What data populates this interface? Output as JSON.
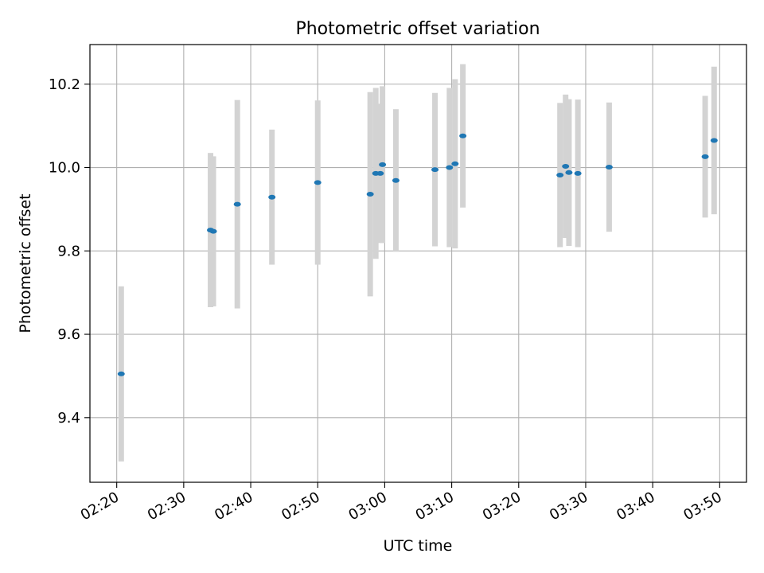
{
  "chart_data": {
    "type": "scatter",
    "title": "Photometric offset variation",
    "xlabel": "UTC time",
    "ylabel": "Photometric offset",
    "xlim": [
      "02:16",
      "03:54"
    ],
    "ylim": [
      9.245,
      10.295
    ],
    "grid": true,
    "x_ticks": [
      "02:20",
      "02:30",
      "02:40",
      "02:50",
      "03:00",
      "03:10",
      "03:20",
      "03:30",
      "03:40",
      "03:50"
    ],
    "y_ticks": [
      9.4,
      9.6,
      9.8,
      10.0,
      10.2
    ],
    "y_tick_labels": [
      "9.4",
      "9.6",
      "9.8",
      "10.0",
      "10.2"
    ],
    "point_color": "#1f77b4",
    "errorbar_color": "#d3d3d3",
    "points": [
      {
        "x": "02:20:40",
        "y": 9.505,
        "err": 0.21
      },
      {
        "x": "02:34:00",
        "y": 9.85,
        "err": 0.185
      },
      {
        "x": "02:34:25",
        "y": 9.847,
        "err": 0.18
      },
      {
        "x": "02:38:00",
        "y": 9.912,
        "err": 0.25
      },
      {
        "x": "02:43:10",
        "y": 9.929,
        "err": 0.162
      },
      {
        "x": "02:50:00",
        "y": 9.964,
        "err": 0.197
      },
      {
        "x": "02:57:50",
        "y": 9.936,
        "err": 0.245
      },
      {
        "x": "02:58:40",
        "y": 9.986,
        "err": 0.205
      },
      {
        "x": "02:59:20",
        "y": 9.986,
        "err": 0.167
      },
      {
        "x": "02:59:40",
        "y": 10.007,
        "err": 0.188
      },
      {
        "x": "03:01:40",
        "y": 9.969,
        "err": 0.171
      },
      {
        "x": "03:07:30",
        "y": 9.995,
        "err": 0.184
      },
      {
        "x": "03:09:40",
        "y": 10.0,
        "err": 0.191
      },
      {
        "x": "03:10:30",
        "y": 10.009,
        "err": 0.203
      },
      {
        "x": "03:11:40",
        "y": 10.076,
        "err": 0.172
      },
      {
        "x": "03:26:10",
        "y": 9.982,
        "err": 0.173
      },
      {
        "x": "03:27:00",
        "y": 10.003,
        "err": 0.172
      },
      {
        "x": "03:27:30",
        "y": 9.988,
        "err": 0.176
      },
      {
        "x": "03:28:50",
        "y": 9.986,
        "err": 0.177
      },
      {
        "x": "03:33:30",
        "y": 10.001,
        "err": 0.155
      },
      {
        "x": "03:47:50",
        "y": 10.026,
        "err": 0.146
      },
      {
        "x": "03:49:10",
        "y": 10.065,
        "err": 0.177
      }
    ]
  }
}
